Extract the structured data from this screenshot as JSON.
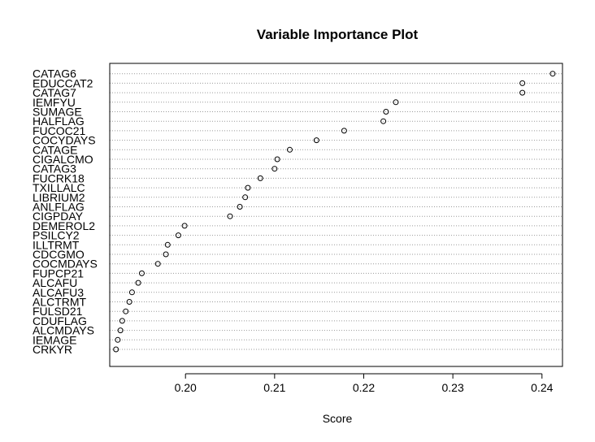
{
  "chart_data": {
    "type": "scatter",
    "title": "Variable Importance Plot",
    "xlabel": "Score",
    "ylabel": "",
    "xlim": [
      0.1915,
      0.2423
    ],
    "xticks": [
      0.2,
      0.21,
      0.22,
      0.23,
      0.24
    ],
    "xtick_labels": [
      "0.20",
      "0.21",
      "0.22",
      "0.23",
      "0.24"
    ],
    "grid": "dotted-horizontal",
    "point_style": "open-circle",
    "variables": [
      {
        "name": "CATAG6",
        "score": 0.2412
      },
      {
        "name": "EDUCCAT2",
        "score": 0.2378
      },
      {
        "name": "CATAG7",
        "score": 0.2378
      },
      {
        "name": "IEMFYU",
        "score": 0.2236
      },
      {
        "name": "SUMAGE",
        "score": 0.2225
      },
      {
        "name": "HALFLAG",
        "score": 0.2222
      },
      {
        "name": "FUCOC21",
        "score": 0.2178
      },
      {
        "name": "COCYDAYS",
        "score": 0.2147
      },
      {
        "name": "CATAGE",
        "score": 0.2117
      },
      {
        "name": "CIGALCMO",
        "score": 0.2103
      },
      {
        "name": "CATAG3",
        "score": 0.21
      },
      {
        "name": "FUCRK18",
        "score": 0.2084
      },
      {
        "name": "TXILLALC",
        "score": 0.207
      },
      {
        "name": "LIBRIUM2",
        "score": 0.2067
      },
      {
        "name": "ANLFLAG",
        "score": 0.2061
      },
      {
        "name": "CIGPDAY",
        "score": 0.205
      },
      {
        "name": "DEMEROL2",
        "score": 0.1999
      },
      {
        "name": "PSILCY2",
        "score": 0.1992
      },
      {
        "name": "ILLTRMT",
        "score": 0.198
      },
      {
        "name": "CDCGMO",
        "score": 0.1978
      },
      {
        "name": "COCMDAYS",
        "score": 0.1969
      },
      {
        "name": "FUPCP21",
        "score": 0.1951
      },
      {
        "name": "ALCAFU",
        "score": 0.1947
      },
      {
        "name": "ALCAFU3",
        "score": 0.194
      },
      {
        "name": "ALCTRMT",
        "score": 0.1937
      },
      {
        "name": "FULSD21",
        "score": 0.1933
      },
      {
        "name": "CDUFLAG",
        "score": 0.1929
      },
      {
        "name": "ALCMDAYS",
        "score": 0.1927
      },
      {
        "name": "IEMAGE",
        "score": 0.1924
      },
      {
        "name": "CRKYR",
        "score": 0.1922
      }
    ]
  }
}
